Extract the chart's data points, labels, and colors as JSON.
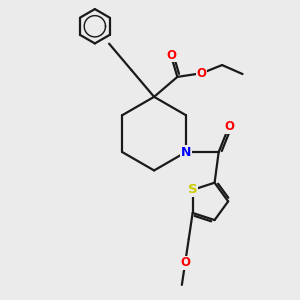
{
  "bg_color": "#ebebeb",
  "bond_color": "#1a1a1a",
  "bond_width": 1.6,
  "atom_colors": {
    "O": "#ff0000",
    "N": "#0000ff",
    "S": "#cccc00",
    "C": "#1a1a1a"
  },
  "font_size": 8.5,
  "figsize": [
    3.0,
    3.0
  ],
  "dpi": 100
}
